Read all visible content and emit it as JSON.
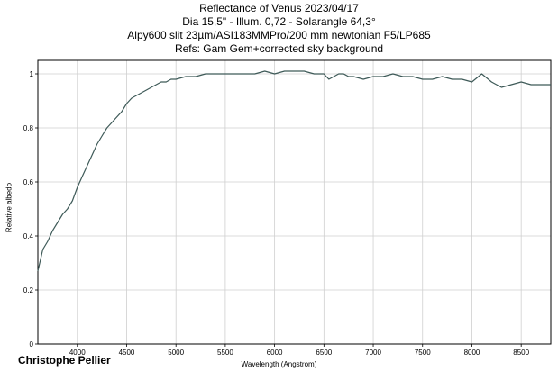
{
  "chart_data": {
    "type": "line",
    "title": "Reflectance of Venus 2023/04/17",
    "subtitles": [
      "Dia 15,5\" - Illum. 0,72 - Solarangle 64,3°",
      "Alpy600 slit 23µm/ASI183MMPro/200 mm newtonian F5/LP685",
      "Refs: Gam Gem+corrected sky background"
    ],
    "xlabel": "Wavelength (Angstrom)",
    "ylabel": "Relative albedo",
    "xlim": [
      3600,
      8800
    ],
    "ylim": [
      0,
      1.05
    ],
    "xticks": [
      4000,
      4500,
      5000,
      5500,
      6000,
      6500,
      7000,
      7500,
      8000,
      8500
    ],
    "yticks": [
      0,
      0.2,
      0.4,
      0.6,
      0.8,
      1
    ],
    "grid": true,
    "line_color": "#3e5a58",
    "series": [
      {
        "x": [
          3600,
          3650,
          3700,
          3750,
          3800,
          3850,
          3900,
          3950,
          4000,
          4050,
          4100,
          4150,
          4200,
          4250,
          4300,
          4350,
          4400,
          4450,
          4500,
          4550,
          4600,
          4650,
          4700,
          4750,
          4800,
          4850,
          4900,
          4950,
          5000,
          5100,
          5200,
          5300,
          5400,
          5500,
          5600,
          5700,
          5800,
          5900,
          6000,
          6100,
          6200,
          6300,
          6400,
          6500,
          6550,
          6600,
          6650,
          6700,
          6750,
          6800,
          6900,
          7000,
          7100,
          7200,
          7300,
          7400,
          7500,
          7600,
          7700,
          7800,
          7900,
          8000,
          8100,
          8200,
          8300,
          8400,
          8500,
          8600,
          8700,
          8800
        ],
        "y": [
          0.27,
          0.35,
          0.38,
          0.42,
          0.45,
          0.48,
          0.5,
          0.53,
          0.58,
          0.62,
          0.66,
          0.7,
          0.74,
          0.77,
          0.8,
          0.82,
          0.84,
          0.86,
          0.89,
          0.91,
          0.92,
          0.93,
          0.94,
          0.95,
          0.96,
          0.97,
          0.97,
          0.98,
          0.98,
          0.99,
          0.99,
          1.0,
          1.0,
          1.0,
          1.0,
          1.0,
          1.0,
          1.01,
          1.0,
          1.01,
          1.01,
          1.01,
          1.0,
          1.0,
          0.98,
          0.99,
          1.0,
          1.0,
          0.99,
          0.99,
          0.98,
          0.99,
          0.99,
          1.0,
          0.99,
          0.99,
          0.98,
          0.98,
          0.99,
          0.98,
          0.98,
          0.97,
          1.0,
          0.97,
          0.95,
          0.96,
          0.97,
          0.96,
          0.96,
          0.96
        ]
      }
    ]
  },
  "credit": "Christophe Pellier"
}
